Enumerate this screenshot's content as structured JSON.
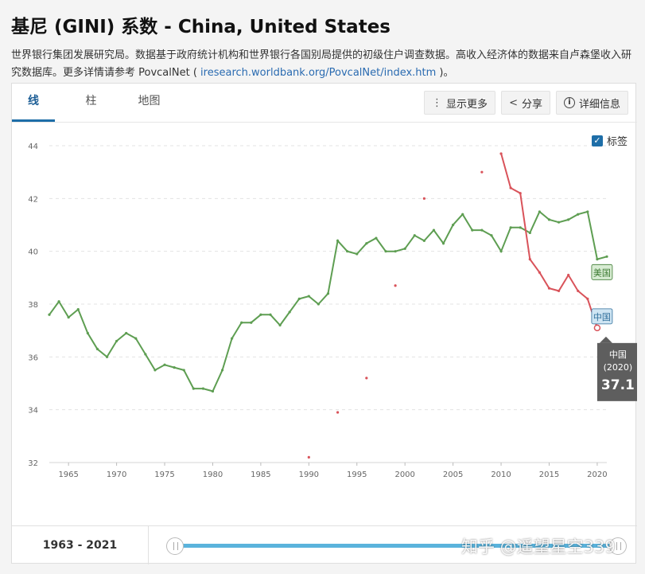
{
  "page": {
    "title": "基尼 (GINI) 系数 - China, United States",
    "subtitle_text": "世界银行集团发展研究局。数据基于政府统计机构和世界银行各国别局提供的初级住户调查数据。高收入经济体的数据来自卢森堡收入研究数据库。更多详情请参考 PovcalNet ( ",
    "subtitle_link": "iresearch.worldbank.org/PovcalNet/index.htm",
    "subtitle_end": " )。"
  },
  "tabs": [
    {
      "label": "线",
      "active": true
    },
    {
      "label": "柱",
      "active": false
    },
    {
      "label": "地图",
      "active": false
    }
  ],
  "toolbar": {
    "more_label": "显示更多",
    "more_icon": "more-vertical-icon",
    "share_label": "分享",
    "share_icon": "share-icon",
    "details_label": "详细信息",
    "details_icon": "info-icon"
  },
  "label_toggle": {
    "label": "标签",
    "checked": true
  },
  "range": {
    "label": "1963 - 2021",
    "start_fraction": 0.0,
    "end_fraction": 1.0
  },
  "watermark": "知乎 @遥望星空339",
  "colors": {
    "us": "#5e9e52",
    "china": "#d9535a",
    "accent": "#1e6ea8",
    "slider": "#5ab3dc"
  },
  "chart_data": {
    "type": "line",
    "ylim": [
      32,
      44
    ],
    "xlim": [
      1963,
      2021
    ],
    "yticks": [
      32,
      34,
      36,
      38,
      40,
      42,
      44
    ],
    "xticks": [
      1965,
      1970,
      1975,
      1980,
      1985,
      1990,
      1995,
      2000,
      2005,
      2010,
      2015,
      2020
    ],
    "series": [
      {
        "name": "美国",
        "color": "#5e9e52",
        "x": [
          1963,
          1964,
          1965,
          1966,
          1967,
          1968,
          1969,
          1970,
          1971,
          1972,
          1973,
          1974,
          1975,
          1976,
          1977,
          1978,
          1979,
          1980,
          1981,
          1982,
          1983,
          1984,
          1985,
          1986,
          1987,
          1988,
          1989,
          1990,
          1991,
          1992,
          1993,
          1994,
          1995,
          1996,
          1997,
          1998,
          1999,
          2000,
          2001,
          2002,
          2003,
          2004,
          2005,
          2006,
          2007,
          2008,
          2009,
          2010,
          2011,
          2012,
          2013,
          2014,
          2015,
          2016,
          2017,
          2018,
          2019,
          2020,
          2021
        ],
        "values": [
          37.6,
          38.1,
          37.5,
          37.8,
          36.9,
          36.3,
          36.0,
          36.6,
          36.9,
          36.7,
          36.1,
          35.5,
          35.7,
          35.6,
          35.5,
          34.8,
          34.8,
          34.7,
          35.5,
          36.7,
          37.3,
          37.3,
          37.6,
          37.6,
          37.2,
          37.7,
          38.2,
          38.3,
          38.0,
          38.4,
          40.4,
          40.0,
          39.9,
          40.3,
          40.5,
          40.0,
          40.0,
          40.1,
          40.6,
          40.4,
          40.8,
          40.3,
          41.0,
          41.4,
          40.8,
          40.8,
          40.6,
          40.0,
          40.9,
          40.9,
          40.7,
          41.5,
          41.2,
          41.1,
          41.2,
          41.4,
          41.5,
          39.7,
          39.8
        ]
      },
      {
        "name": "中国",
        "color": "#d9535a",
        "x": [
          1990,
          1993,
          1996,
          1999,
          2002,
          2008,
          2010,
          2011,
          2012,
          2013,
          2014,
          2015,
          2016,
          2017,
          2018,
          2019,
          2020
        ],
        "values": [
          32.2,
          33.9,
          35.2,
          38.7,
          42.0,
          43.0,
          43.7,
          42.4,
          42.2,
          39.7,
          39.2,
          38.6,
          38.5,
          39.1,
          38.5,
          38.2,
          37.1
        ]
      }
    ],
    "series_labels": [
      {
        "text": "美国"
      },
      {
        "text": "中国"
      }
    ],
    "tooltip": {
      "country": "中国",
      "year": "(2020)",
      "value": "37.1"
    }
  }
}
